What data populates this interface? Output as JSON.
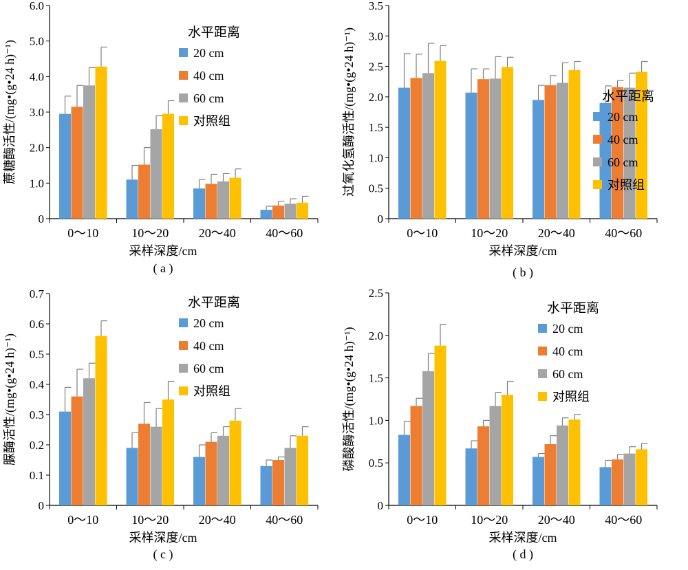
{
  "colors": {
    "s20": "#5B9BD5",
    "s40": "#ED7D31",
    "s60": "#A5A5A5",
    "ctrl": "#FFC000",
    "axis": "#000000",
    "err": "#7f7f7f"
  },
  "legend_title": "水平距离",
  "chart_data": [
    {
      "panel_label": "( a )",
      "type": "bar",
      "ylabel": "蔗糖酶活性/(mg•(g•24 h)⁻¹)",
      "xlabel": "采样深度/cm",
      "categories": [
        "0～10",
        "10～20",
        "20～40",
        "40～60"
      ],
      "ylim": [
        0,
        6.0
      ],
      "yticks": [
        "0",
        "1.0",
        "2.0",
        "3.0",
        "4.0",
        "5.0",
        "6.0"
      ],
      "ytick_values": [
        0,
        1,
        2,
        3,
        4,
        5,
        6
      ],
      "legend_position": "top-right",
      "series": [
        {
          "name": "20 cm",
          "values": [
            2.95,
            1.1,
            0.85,
            0.25
          ],
          "errors": [
            0.5,
            0.4,
            0.25,
            0.1
          ]
        },
        {
          "name": "40 cm",
          "values": [
            3.15,
            1.52,
            0.98,
            0.37
          ],
          "errors": [
            0.6,
            0.48,
            0.27,
            0.12
          ]
        },
        {
          "name": "60 cm",
          "values": [
            3.75,
            2.52,
            1.05,
            0.42
          ],
          "errors": [
            0.5,
            0.38,
            0.22,
            0.14
          ]
        },
        {
          "name": "对照组",
          "values": [
            4.28,
            2.95,
            1.15,
            0.45
          ],
          "errors": [
            0.55,
            0.37,
            0.25,
            0.18
          ]
        }
      ]
    },
    {
      "panel_label": "( b )",
      "type": "bar",
      "ylabel": "过氧化氢酶活性/(mg•(g•24 h)⁻¹)",
      "xlabel": "采样深度/cm",
      "categories": [
        "0～10",
        "10～20",
        "20～40",
        "40～60"
      ],
      "ylim": [
        0,
        3.5
      ],
      "yticks": [
        "0",
        "0.5",
        "1.0",
        "1.5",
        "2.0",
        "2.5",
        "3.0",
        "3.5"
      ],
      "ytick_values": [
        0,
        0.5,
        1,
        1.5,
        2,
        2.5,
        3,
        3.5
      ],
      "legend_position": "right",
      "series": [
        {
          "name": "20 cm",
          "values": [
            2.15,
            2.07,
            1.95,
            1.9
          ],
          "errors": [
            0.56,
            0.39,
            0.24,
            0.28
          ]
        },
        {
          "name": "40 cm",
          "values": [
            2.31,
            2.29,
            2.19,
            2.16
          ],
          "errors": [
            0.39,
            0.17,
            0.16,
            0.11
          ]
        },
        {
          "name": "60 cm",
          "values": [
            2.39,
            2.3,
            2.23,
            2.15
          ],
          "errors": [
            0.49,
            0.36,
            0.33,
            0.24
          ]
        },
        {
          "name": "对照组",
          "values": [
            2.59,
            2.49,
            2.44,
            2.41
          ],
          "errors": [
            0.25,
            0.16,
            0.14,
            0.17
          ]
        }
      ]
    },
    {
      "panel_label": "( c )",
      "type": "bar",
      "ylabel": "脲酶活性/(mg•(g•24 h)⁻¹)",
      "xlabel": "采样深度/cm",
      "categories": [
        "0～10",
        "10～20",
        "20～40",
        "40～60"
      ],
      "ylim": [
        0,
        0.7
      ],
      "yticks": [
        "0",
        "0.1",
        "0.2",
        "0.3",
        "0.4",
        "0.5",
        "0.6",
        "0.7"
      ],
      "ytick_values": [
        0,
        0.1,
        0.2,
        0.3,
        0.4,
        0.5,
        0.6,
        0.7
      ],
      "legend_position": "top-right",
      "series": [
        {
          "name": "20 cm",
          "values": [
            0.31,
            0.19,
            0.16,
            0.13
          ],
          "errors": [
            0.08,
            0.05,
            0.04,
            0.02
          ]
        },
        {
          "name": "40 cm",
          "values": [
            0.36,
            0.27,
            0.21,
            0.15
          ],
          "errors": [
            0.09,
            0.07,
            0.03,
            0.01
          ]
        },
        {
          "name": "60 cm",
          "values": [
            0.42,
            0.26,
            0.23,
            0.19
          ],
          "errors": [
            0.05,
            0.06,
            0.03,
            0.04
          ]
        },
        {
          "name": "对照组",
          "values": [
            0.56,
            0.35,
            0.28,
            0.23
          ],
          "errors": [
            0.05,
            0.06,
            0.04,
            0.03
          ]
        }
      ]
    },
    {
      "panel_label": "( d )",
      "type": "bar",
      "ylabel": "磷酸酶活性/(mg•(g•24 h)⁻¹)",
      "xlabel": "采样深度/cm",
      "categories": [
        "0～10",
        "10～20",
        "20～40",
        "40～60"
      ],
      "ylim": [
        0,
        2.5
      ],
      "yticks": [
        "0",
        "0.5",
        "1.0",
        "1.5",
        "2.0",
        "2.5"
      ],
      "ytick_values": [
        0,
        0.5,
        1,
        1.5,
        2,
        2.5
      ],
      "legend_position": "top-right",
      "series": [
        {
          "name": "20 cm",
          "values": [
            0.83,
            0.67,
            0.57,
            0.45
          ],
          "errors": [
            0.16,
            0.09,
            0.04,
            0.08
          ]
        },
        {
          "name": "40 cm",
          "values": [
            1.17,
            0.93,
            0.72,
            0.54
          ],
          "errors": [
            0.09,
            0.07,
            0.1,
            0.06
          ]
        },
        {
          "name": "60 cm",
          "values": [
            1.58,
            1.17,
            0.94,
            0.61
          ],
          "errors": [
            0.21,
            0.16,
            0.09,
            0.08
          ]
        },
        {
          "name": "对照组",
          "values": [
            1.88,
            1.3,
            1.01,
            0.66
          ],
          "errors": [
            0.25,
            0.16,
            0.06,
            0.07
          ]
        }
      ]
    }
  ]
}
